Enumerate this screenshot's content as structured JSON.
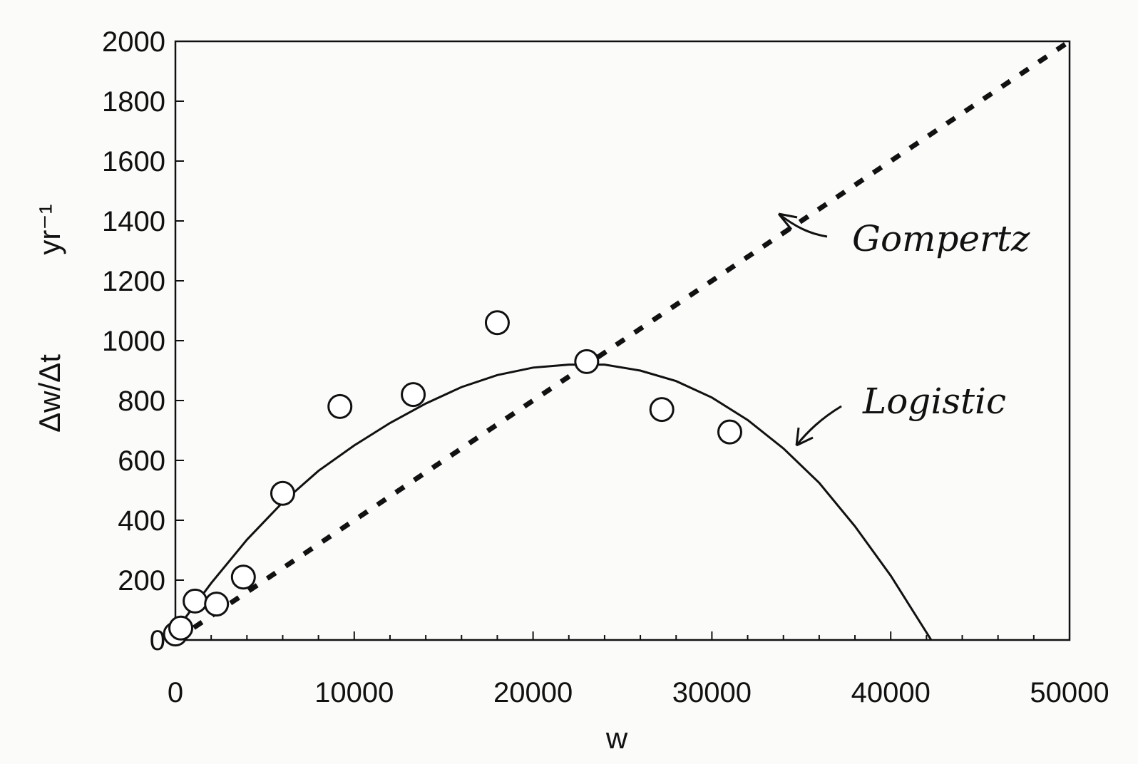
{
  "chart_data": {
    "type": "scatter",
    "title": "",
    "xlabel": "w",
    "ylabel": "Δw/Δt",
    "ylabel_unit": "yr⁻¹",
    "xlim": [
      0,
      50000
    ],
    "ylim": [
      0,
      2000
    ],
    "x_ticks": [
      "0",
      "10000",
      "20000",
      "30000",
      "40000",
      "50000"
    ],
    "y_ticks": [
      "0",
      "200",
      "400",
      "600",
      "800",
      "1000",
      "1200",
      "1400",
      "1600",
      "1800",
      "2000"
    ],
    "grid": false,
    "points": [
      {
        "x": 0,
        "y": 20
      },
      {
        "x": 300,
        "y": 40
      },
      {
        "x": 1100,
        "y": 130
      },
      {
        "x": 2300,
        "y": 120
      },
      {
        "x": 3800,
        "y": 210
      },
      {
        "x": 6000,
        "y": 490
      },
      {
        "x": 9200,
        "y": 780
      },
      {
        "x": 13300,
        "y": 820
      },
      {
        "x": 18000,
        "y": 1060
      },
      {
        "x": 23000,
        "y": 930
      },
      {
        "x": 27200,
        "y": 770
      },
      {
        "x": 31000,
        "y": 695
      }
    ],
    "series": [
      {
        "style": "solid",
        "x": [
          0,
          1000,
          2000,
          4000,
          6000,
          8000,
          10000,
          12000,
          14000,
          16000,
          18000,
          20000,
          22000,
          24000,
          26000,
          28000,
          30000,
          32000,
          34000,
          36000,
          38000,
          40000,
          42000,
          43000
        ],
        "y": [
          30,
          110,
          190,
          335,
          460,
          565,
          650,
          725,
          790,
          845,
          885,
          910,
          920,
          920,
          900,
          865,
          810,
          735,
          640,
          525,
          380,
          215,
          25,
          -70
        ]
      },
      {
        "style": "dashed",
        "x": [
          0,
          50000
        ],
        "y": [
          0,
          2000
        ]
      }
    ],
    "annotations": [
      {
        "text": "Gompertz",
        "target": "dashed"
      },
      {
        "text": "Logistic",
        "target": "solid"
      }
    ]
  }
}
